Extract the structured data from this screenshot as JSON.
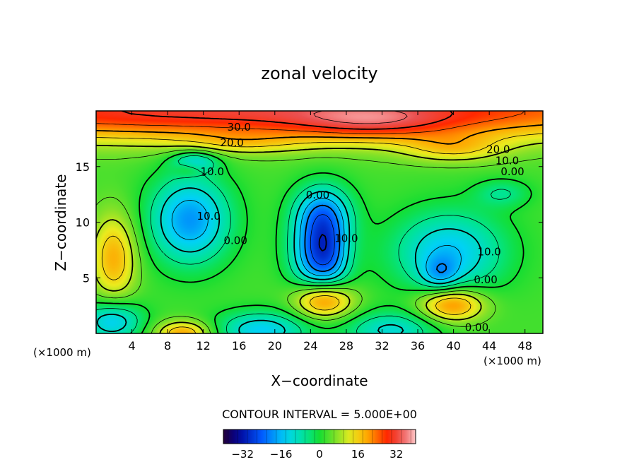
{
  "chart_data": {
    "type": "heatmap",
    "title": "zonal velocity",
    "xlabel": "X−coordinate",
    "ylabel": "Z−coordinate",
    "x_unit_left": "(×1000 m)",
    "x_unit_right": "(×1000 m)",
    "xlim": [
      0,
      50
    ],
    "ylim": [
      0,
      20
    ],
    "x_ticks": [
      4,
      8,
      12,
      16,
      20,
      24,
      28,
      32,
      36,
      40,
      44,
      48
    ],
    "y_ticks": [
      5,
      10,
      15
    ],
    "contour_interval_label": "CONTOUR INTERVAL = 5.000E+00",
    "contour_interval": 5,
    "colorbar": {
      "min": -40,
      "max": 40,
      "ticks": [
        -32,
        -16,
        0,
        16,
        32
      ]
    },
    "contour_labels": [
      {
        "text": "30.0",
        "x": 16.0,
        "z": 18.6
      },
      {
        "text": "20.0",
        "x": 15.2,
        "z": 17.2
      },
      {
        "text": "10.0",
        "x": 13.0,
        "z": 14.6
      },
      {
        "text": "10.0",
        "x": 12.6,
        "z": 10.6
      },
      {
        "text": "0.00",
        "x": 15.6,
        "z": 8.4
      },
      {
        "text": "0.00",
        "x": 24.8,
        "z": 12.5
      },
      {
        "text": "10.0",
        "x": 28.0,
        "z": 8.6
      },
      {
        "text": "20.0",
        "x": 45.0,
        "z": 16.6
      },
      {
        "text": "10.0",
        "x": 46.0,
        "z": 15.6
      },
      {
        "text": "0.00",
        "x": 46.6,
        "z": 14.6
      },
      {
        "text": "10.0",
        "x": 44.0,
        "z": 7.4
      },
      {
        "text": "0.00",
        "x": 43.6,
        "z": 4.9
      },
      {
        "text": "0.00",
        "x": 42.6,
        "z": 0.6
      }
    ],
    "features": [
      {
        "x": 18,
        "z": 20.0,
        "sx": 40,
        "sz": 1.9,
        "v": 29
      },
      {
        "x": 31,
        "z": 18.9,
        "sx": 6,
        "sz": 1.1,
        "v": 9
      },
      {
        "x": 16,
        "z": 17.1,
        "sx": 5,
        "sz": 0.7,
        "v": 6
      },
      {
        "x": 40,
        "z": 16.6,
        "sx": 4,
        "sz": 0.9,
        "v": 10
      },
      {
        "x": 11,
        "z": 15.4,
        "sx": 1.8,
        "sz": 0.7,
        "v": -14
      },
      {
        "x": 10.4,
        "z": 14.8,
        "sx": 1.2,
        "sz": 0.5,
        "v": 8
      },
      {
        "x": 10.5,
        "z": 10.2,
        "sx": 3.2,
        "sz": 2.8,
        "v": -22
      },
      {
        "x": 25.5,
        "z": 7.6,
        "sx": 2.4,
        "sz": 2.9,
        "v": -33
      },
      {
        "x": 25.2,
        "z": 11.2,
        "sx": 2.2,
        "sz": 1.6,
        "v": -10
      },
      {
        "x": 39.5,
        "z": 7.3,
        "sx": 4.4,
        "sz": 2.6,
        "v": -18
      },
      {
        "x": 38.5,
        "z": 5.3,
        "sx": 1.5,
        "sz": 1.1,
        "v": -10
      },
      {
        "x": 2.0,
        "z": 6.8,
        "sx": 1.8,
        "sz": 2.8,
        "v": 16
      },
      {
        "x": 25.5,
        "z": 3.0,
        "sx": 2.3,
        "sz": 1.2,
        "v": 25
      },
      {
        "x": 39.8,
        "z": 2.6,
        "sx": 2.6,
        "sz": 1.1,
        "v": 21
      },
      {
        "x": 1.8,
        "z": 1.1,
        "sx": 2.4,
        "sz": 1.3,
        "v": -18
      },
      {
        "x": 18.5,
        "z": 0.3,
        "sx": 3.6,
        "sz": 1.2,
        "v": -17
      },
      {
        "x": 33.0,
        "z": 0.3,
        "sx": 3.6,
        "sz": 1.2,
        "v": -14
      },
      {
        "x": 9.8,
        "z": 0.0,
        "sx": 2.2,
        "sz": 0.8,
        "v": 17
      },
      {
        "x": 45.5,
        "z": 12.6,
        "sx": 2.2,
        "sz": 0.9,
        "v": -8
      },
      {
        "x": 28.5,
        "z": 7.2,
        "sx": 1.5,
        "sz": 2.2,
        "v": 5
      }
    ]
  }
}
